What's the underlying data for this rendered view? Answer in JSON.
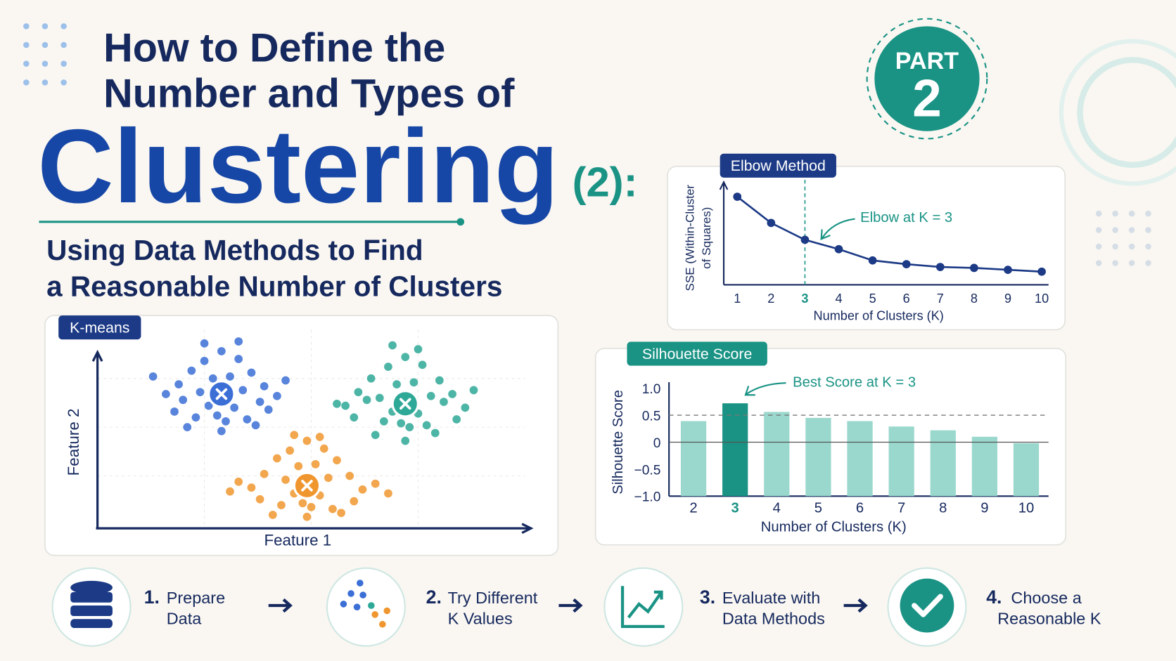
{
  "header": {
    "title_line1": "How to Define the",
    "title_line2": "Number and Types of",
    "title_big": "Clustering",
    "title_suffix": "(2):",
    "subtitle_line1": "Using Data Methods to Find",
    "subtitle_line2": "a Reasonable Number of Clusters",
    "badge_top": "PART",
    "badge_number": "2"
  },
  "chart_data": [
    {
      "type": "scatter",
      "title": "K-means",
      "xlabel": "Feature 1",
      "ylabel": "Feature 2",
      "xlim": [
        0,
        10
      ],
      "ylim": [
        0,
        10
      ],
      "series": [
        {
          "color": "#3b6fd6",
          "center": {
            "x": 2.9,
            "y": 6.7
          },
          "x": [
            2.9,
            2.5,
            3.3,
            2.2,
            3.6,
            2.7,
            3.1,
            1.9,
            3.9,
            2.4,
            3.4,
            2.0,
            3.8,
            2.6,
            3.2,
            1.6,
            4.2,
            2.8,
            3.0,
            2.3,
            3.5,
            1.3,
            4.4,
            2.1,
            3.7,
            2.9,
            2.5,
            3.3,
            1.8,
            4.0
          ],
          "y": [
            8.9,
            8.4,
            8.5,
            7.9,
            7.8,
            7.5,
            7.6,
            7.2,
            7.1,
            6.8,
            6.9,
            6.4,
            6.3,
            6.1,
            6.0,
            6.7,
            6.6,
            5.6,
            5.3,
            5.5,
            5.4,
            7.6,
            7.4,
            5.0,
            5.1,
            4.8,
            9.3,
            9.4,
            5.8,
            5.9
          ]
        },
        {
          "color": "#2ea897",
          "center": {
            "x": 7.2,
            "y": 6.2
          },
          "x": [
            7.2,
            6.8,
            7.6,
            6.4,
            8.0,
            7.0,
            7.4,
            6.1,
            8.3,
            6.6,
            7.8,
            5.8,
            8.6,
            6.9,
            7.5,
            6.3,
            8.1,
            7.1,
            7.3,
            6.7,
            7.7,
            5.6,
            8.8,
            6.5,
            7.9,
            7.2,
            6.9,
            7.5,
            6.0,
            8.4
          ],
          "y": [
            8.6,
            8.1,
            8.2,
            7.5,
            7.4,
            7.2,
            7.3,
            6.8,
            6.7,
            6.5,
            6.6,
            6.1,
            6.0,
            5.8,
            5.7,
            6.4,
            6.3,
            5.2,
            5.0,
            5.3,
            5.1,
            6.2,
            6.9,
            4.6,
            4.7,
            4.3,
            9.2,
            9.0,
            5.5,
            5.4
          ]
        },
        {
          "color": "#f0962e",
          "center": {
            "x": 4.9,
            "y": 2.0
          },
          "x": [
            4.9,
            4.5,
            5.3,
            4.2,
            5.6,
            4.7,
            5.1,
            3.9,
            5.9,
            4.4,
            5.4,
            3.6,
            6.2,
            4.6,
            5.2,
            3.3,
            6.5,
            4.8,
            5.0,
            4.3,
            5.5,
            3.1,
            6.8,
            4.1,
            5.7,
            4.9,
            4.6,
            5.2,
            3.8,
            6.0
          ],
          "y": [
            4.3,
            3.8,
            3.9,
            3.4,
            3.3,
            3.0,
            3.1,
            2.6,
            2.5,
            2.3,
            2.4,
            1.9,
            1.8,
            1.6,
            1.5,
            2.2,
            2.1,
            1.1,
            0.9,
            1.0,
            0.8,
            1.7,
            1.6,
            0.5,
            0.6,
            0.4,
            4.6,
            4.5,
            1.3,
            1.2
          ]
        }
      ]
    },
    {
      "type": "line",
      "title": "Elbow Method",
      "xlabel": "Number of Clusters (K)",
      "ylabel": [
        "SSE (Within-Cluster",
        "of Squares)"
      ],
      "annotation": "Elbow at K = 3",
      "color": "#1c3a86",
      "highlight_x": 3,
      "highlight_color": "#1a9385",
      "x": [
        1,
        2,
        3,
        4,
        5,
        6,
        7,
        8,
        9,
        10
      ],
      "values": [
        9.4,
        6.6,
        4.8,
        3.8,
        2.6,
        2.2,
        1.9,
        1.8,
        1.6,
        1.4
      ],
      "xlim": [
        0.6,
        10.2
      ],
      "ylim": [
        0,
        10
      ],
      "xticks": [
        1,
        2,
        3,
        4,
        5,
        6,
        7,
        8,
        9,
        10
      ]
    },
    {
      "type": "bar",
      "title": "Silhouette Score",
      "xlabel": "Number of Clusters (K)",
      "ylabel": "Silhouette Score",
      "annotation": "Best Score at K = 3",
      "color": "#9ad8cd",
      "highlight": "3",
      "highlight_color": "#1a9385",
      "categories": [
        "2",
        "3",
        "4",
        "5",
        "6",
        "7",
        "8",
        "9",
        "10"
      ],
      "values": [
        0.39,
        0.72,
        0.56,
        0.45,
        0.39,
        0.29,
        0.22,
        0.1,
        -0.02
      ],
      "ylim": [
        -1,
        1
      ],
      "yticks": [
        {
          "value": -1,
          "label": "−1.0"
        },
        {
          "value": -0.5,
          "label": "−0.5"
        },
        0,
        0.5,
        {
          "value": 1,
          "label": "1.0"
        }
      ],
      "reference_line": 0.5
    }
  ],
  "steps": [
    {
      "number": "1.",
      "line1": "Prepare",
      "line2": "Data"
    },
    {
      "number": "2.",
      "line1": "Try Different",
      "line2": "K Values"
    },
    {
      "number": "3.",
      "line1": "Evaluate with",
      "line2": "Data Methods"
    },
    {
      "number": "4.",
      "line1": "Choose a",
      "line2": "Reasonable K"
    }
  ]
}
